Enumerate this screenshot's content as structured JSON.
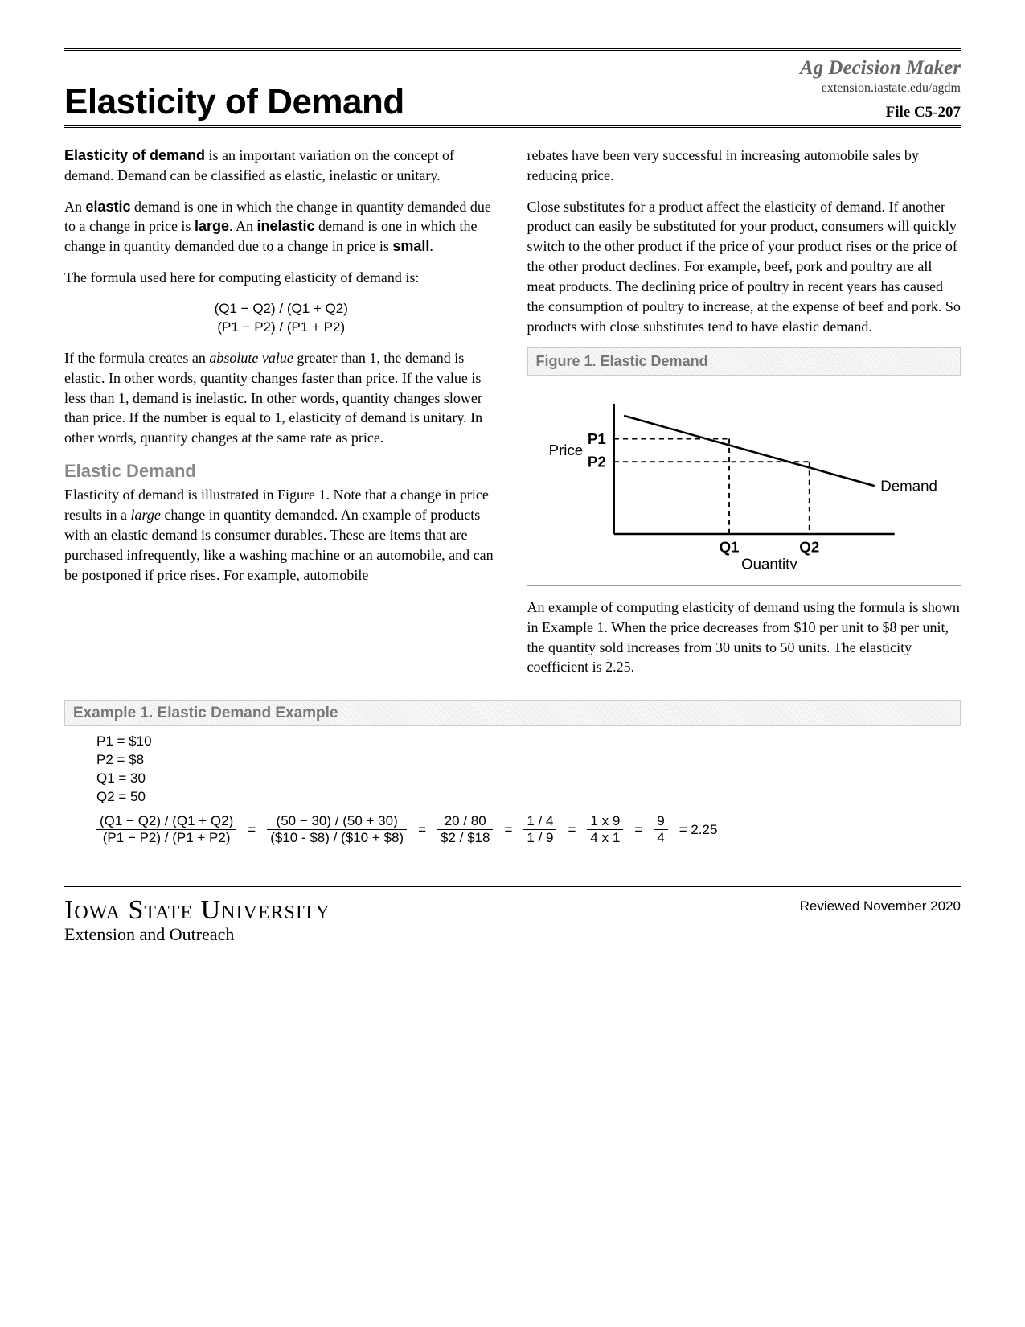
{
  "header": {
    "title": "Elasticity of Demand",
    "brand": "Ag Decision Maker",
    "url": "extension.iastate.edu/agdm",
    "file_id": "File  C5-207"
  },
  "left": {
    "p1_a": "Elasticity of demand",
    "p1_b": " is an important variation on the concept of demand. Demand can be classified as elastic, inelastic or unitary.",
    "p2_a": "An ",
    "p2_b": "elastic",
    "p2_c": " demand is one in which the change in quantity demanded due to a change in price is ",
    "p2_d": "large",
    "p2_e": ". An ",
    "p2_f": "inelastic",
    "p2_g": " demand is one in which the change in quantity demanded due to a change in price is ",
    "p2_h": "small",
    "p2_i": ".",
    "p3": "The formula used here for computing elasticity of demand is:",
    "formula_num": "(Q1 − Q2) / (Q1 + Q2)",
    "formula_den": "(P1 − P2) / (P1 + P2)",
    "p4_a": "If the formula creates an ",
    "p4_b": "absolute value",
    "p4_c": " greater than 1, the demand is elastic. In other words, quantity changes faster than price. If the value is less than 1, demand is inelastic. In other words, quantity changes slower than price. If the number is equal to 1, elasticity of demand is unitary. In other words, quantity changes at the same rate as price.",
    "section_head": "Elastic Demand",
    "p5_a": "Elasticity of demand is illustrated in Figure 1. Note that a change in price results in a ",
    "p5_b": "large",
    "p5_c": " change in quantity demanded. An example of products with an elastic demand is consumer durables. These are items that are purchased infrequently, like a washing machine or an automobile, and can be postponed if price rises. For example, automobile"
  },
  "right": {
    "p1": "rebates have been very successful in increasing automobile sales by reducing price.",
    "p2": "Close substitutes for a product affect the elasticity of demand. If another product can easily be substituted for your product, consumers will quickly switch to the other product if the price of your product rises or the price of the other product declines. For example, beef, pork and poultry are all meat products. The declining price of poultry in recent years has caused the consumption of poultry to increase, at the expense of beef and pork. So products with close substitutes tend to have elastic demand.",
    "figure_title": "Figure 1. Elastic Demand",
    "chart": {
      "type": "line",
      "y_label": "Price",
      "x_label": "Quantity",
      "y_ticks": [
        "P1",
        "P2"
      ],
      "x_ticks": [
        "Q1",
        "Q2"
      ],
      "series_label": "Demand",
      "axis_color": "#000000",
      "line_color": "#000000",
      "dash_color": "#000000",
      "line_width": 2,
      "font_size": 15,
      "points": {
        "x_origin": 80,
        "y_origin": 150,
        "x_end": 360,
        "y_top": 20,
        "p1_y": 55,
        "p2_y": 78,
        "q1_x": 195,
        "q2_x": 275,
        "demand_x1": 90,
        "demand_y1": 32,
        "demand_x2": 340,
        "demand_y2": 102
      }
    },
    "p3": "An example of computing elasticity of demand using the formula is shown in Example 1. When the price decreases from $10 per unit to $8 per unit, the quantity sold increases from 30 units to 50 units. The elasticity coefficient is 2.25."
  },
  "example": {
    "title": "Example 1. Elastic Demand Example",
    "given": [
      "P1 = $10",
      "P2 = $8",
      "Q1 = 30",
      "Q2 = 50"
    ],
    "steps": [
      {
        "n": "(Q1 − Q2) / (Q1 + Q2)",
        "d": "(P1 − P2) / (P1 + P2)"
      },
      {
        "n": "(50 − 30) / (50 + 30)",
        "d": "($10 - $8) / ($10 + $8)"
      },
      {
        "n": "20 / 80",
        "d": "$2 / $18"
      },
      {
        "n": "1 / 4",
        "d": "1 / 9"
      },
      {
        "n": "1 x 9",
        "d": "4 x 1"
      },
      {
        "n": "9",
        "d": "4"
      }
    ],
    "result": "=  2.25"
  },
  "footer": {
    "reviewed": "Reviewed  November 2020",
    "university": "Iowa State University",
    "extension": "Extension and Outreach"
  }
}
